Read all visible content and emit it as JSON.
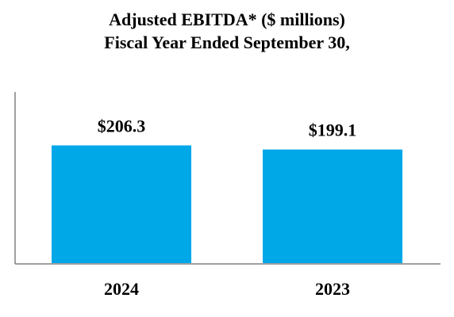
{
  "chart_data": {
    "type": "bar",
    "title": "Adjusted EBITDA* ($ millions)",
    "subtitle": "Fiscal Year Ended September 30,",
    "categories": [
      "2024",
      "2023"
    ],
    "values": [
      206.3,
      199.1
    ],
    "data_labels": [
      "$206.3",
      "$199.1"
    ],
    "xlabel": "",
    "ylabel": "",
    "ylim": [
      0,
      300
    ],
    "grid": false,
    "legend": "none",
    "bar_color": "#00A8E8",
    "axis_color": "#808080"
  }
}
